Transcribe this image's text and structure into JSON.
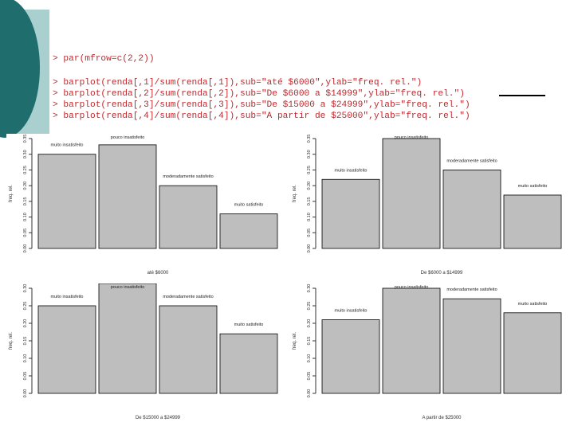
{
  "code": {
    "line1": "> par(mfrow=c(2,2))",
    "line2": "> barplot(renda[,1]/sum(renda[,1]),sub=\"até $6000\",ylab=\"freq. rel.\")",
    "line3": "> barplot(renda[,2]/sum(renda[,2]),sub=\"De $6000 a $14999\",ylab=\"freq. rel.\")",
    "line4": "> barplot(renda[,3]/sum(renda[,3]),sub=\"De $15000 a $24999\",ylab=\"freq. rel.\")",
    "line5": "> barplot(renda[,4]/sum(renda[,4]),sub=\"A partir de $25000\",ylab=\"freq. rel.\")"
  },
  "colors": {
    "teal": "#1f6d6d",
    "light_teal": "#a9cfcf",
    "code_text": "#c0282d",
    "bar_fill": "#bebebe",
    "bar_stroke": "#000000"
  },
  "chart_data": [
    {
      "type": "bar",
      "categories": [
        "muito insatisfeito",
        "pouco insatisfeito",
        "moderadamente satisfeito",
        "muito satisfeito"
      ],
      "values": [
        0.3,
        0.33,
        0.2,
        0.11
      ],
      "xlabel": "até $6000",
      "ylabel": "freq. rel.",
      "ylim": [
        0,
        0.35
      ],
      "yticks": [
        "0.00",
        "0.05",
        "0.10",
        "0.15",
        "0.20",
        "0.25",
        "0.30",
        "0.35"
      ]
    },
    {
      "type": "bar",
      "categories": [
        "muito insatisfeito",
        "pouco insatisfeito",
        "moderadamente satisfeito",
        "muito satisfeito"
      ],
      "values": [
        0.22,
        0.35,
        0.25,
        0.17
      ],
      "xlabel": "De $6000 a $14999",
      "ylabel": "freq. rel.",
      "ylim": [
        0,
        0.35
      ],
      "yticks": [
        "0.00",
        "0.05",
        "0.10",
        "0.15",
        "0.20",
        "0.25",
        "0.30",
        "0.35"
      ]
    },
    {
      "type": "bar",
      "categories": [
        "muito insatisfeito",
        "pouco insatisfeito",
        "moderadamente satisfeito",
        "muito satisfeito"
      ],
      "values": [
        0.25,
        0.32,
        0.25,
        0.17
      ],
      "xlabel": "De $15000 a $24999",
      "ylabel": "freq. rel.",
      "ylim": [
        0,
        0.3
      ],
      "yticks": [
        "0.00",
        "0.05",
        "0.10",
        "0.15",
        "0.20",
        "0.25",
        "0.30"
      ]
    },
    {
      "type": "bar",
      "categories": [
        "muito insatisfeito",
        "pouco insatisfeito",
        "moderadamente satisfeito",
        "muito satisfeito"
      ],
      "values": [
        0.21,
        0.3,
        0.27,
        0.23
      ],
      "xlabel": "A partir de $25000",
      "ylabel": "freq. rel.",
      "ylim": [
        0,
        0.3
      ],
      "yticks": [
        "0.00",
        "0.05",
        "0.10",
        "0.15",
        "0.20",
        "0.25",
        "0.30"
      ]
    }
  ]
}
